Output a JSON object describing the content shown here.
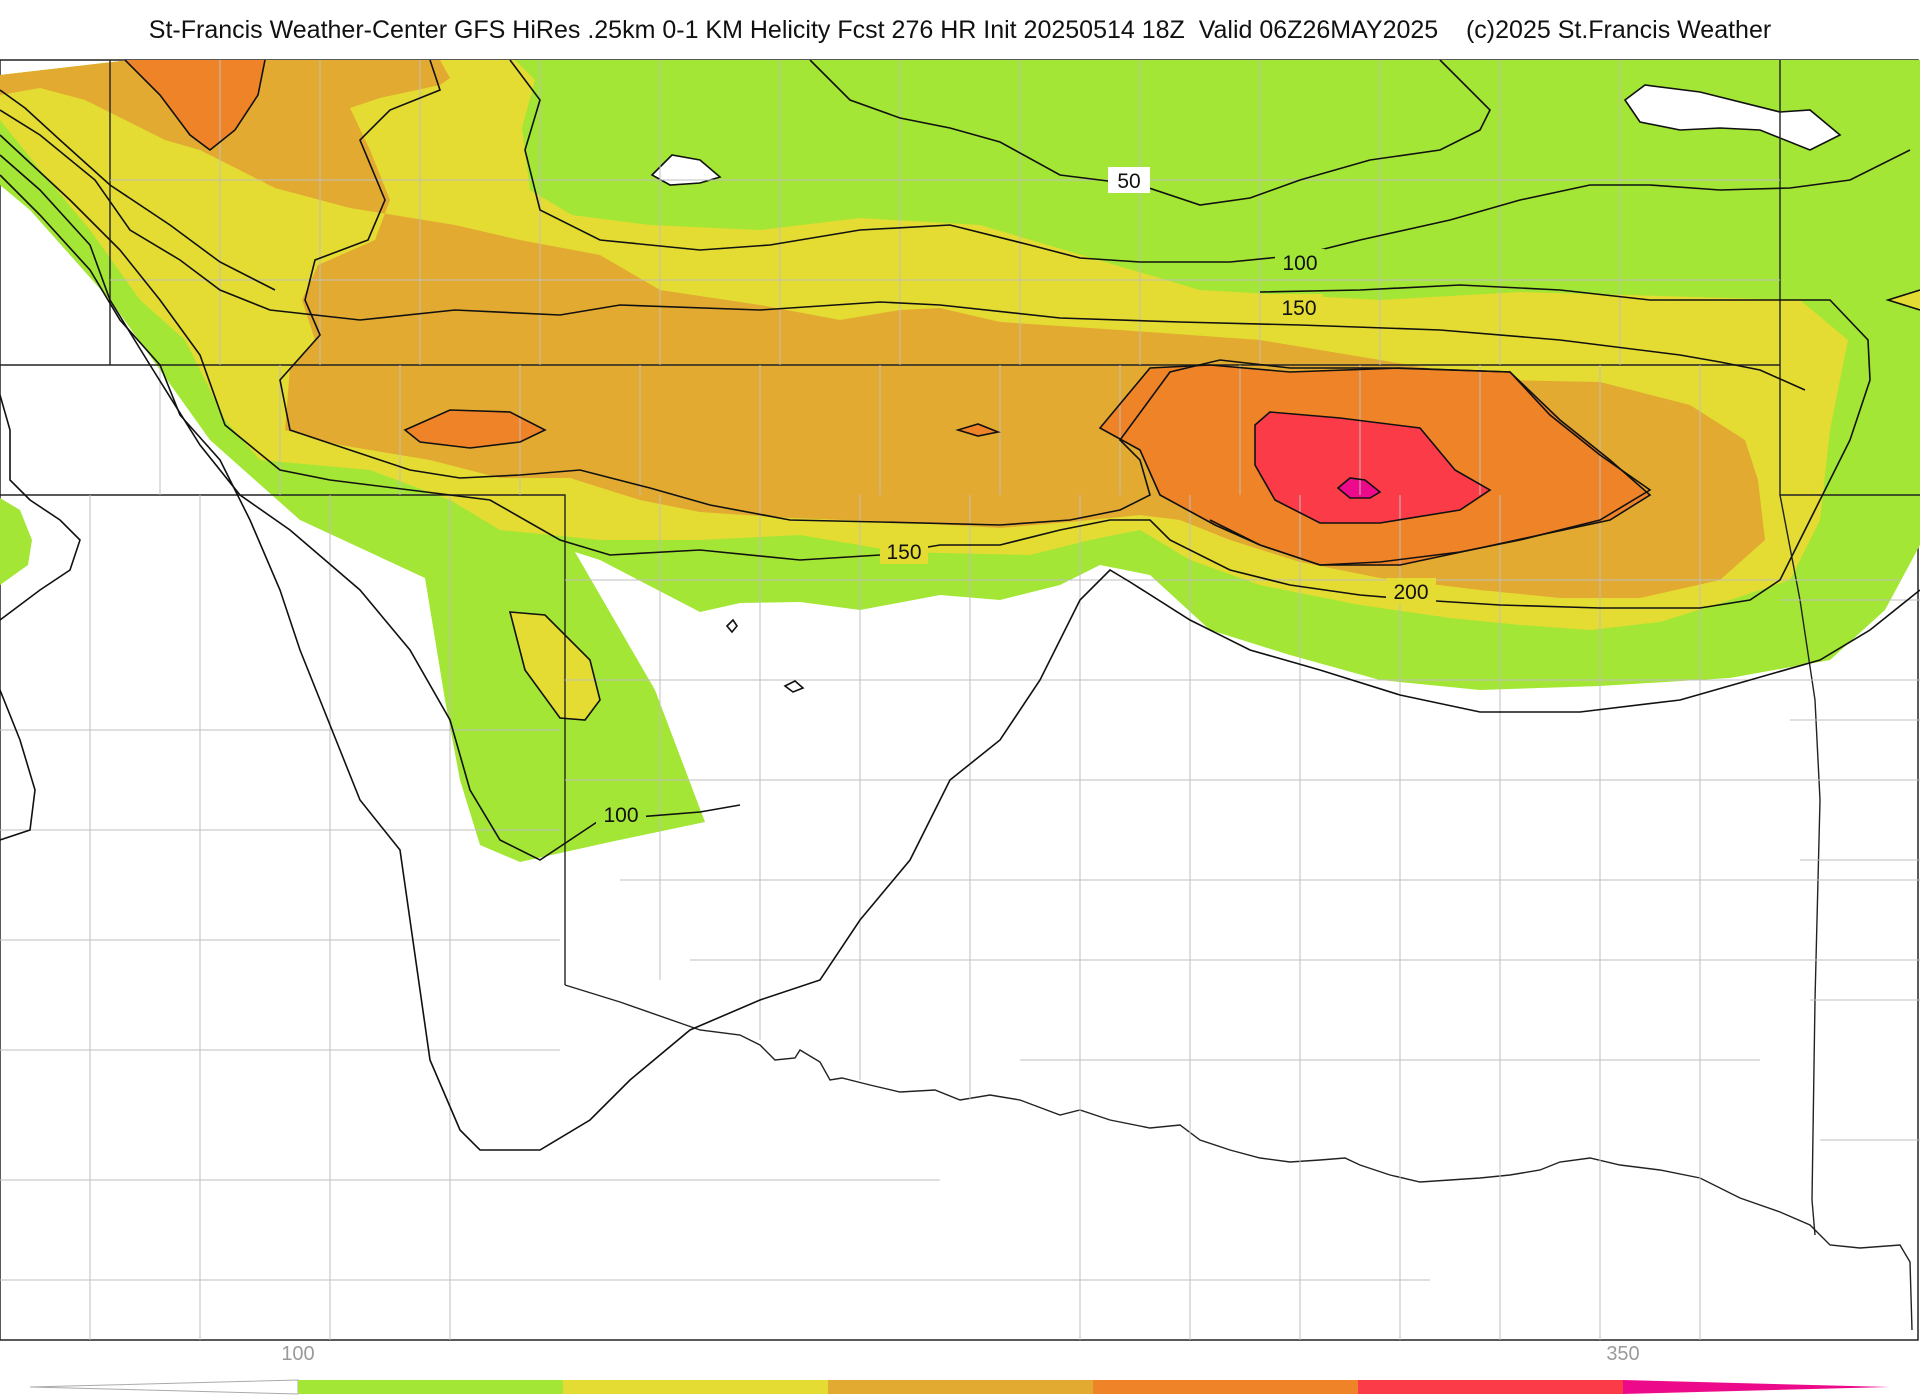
{
  "header": {
    "title": "St-Francis Weather-Center GFS HiRes .25km 0-1 KM Helicity Fcst 276 HR Init 20250514 18Z  Valid 06Z26MAY2025    (c)2025 St.Francis Weather"
  },
  "contour_labels": {
    "c50": "50",
    "c100_top": "100",
    "c150_top": "150",
    "c150_mid": "150",
    "c200": "200",
    "c100_left": "100"
  },
  "colorbar": {
    "tick_low": "100",
    "tick_high": "350",
    "colors": [
      "#a3e635",
      "#e4dc32",
      "#e2aa31",
      "#ef8328",
      "#fb3c48",
      "#ec0a8a"
    ]
  }
}
